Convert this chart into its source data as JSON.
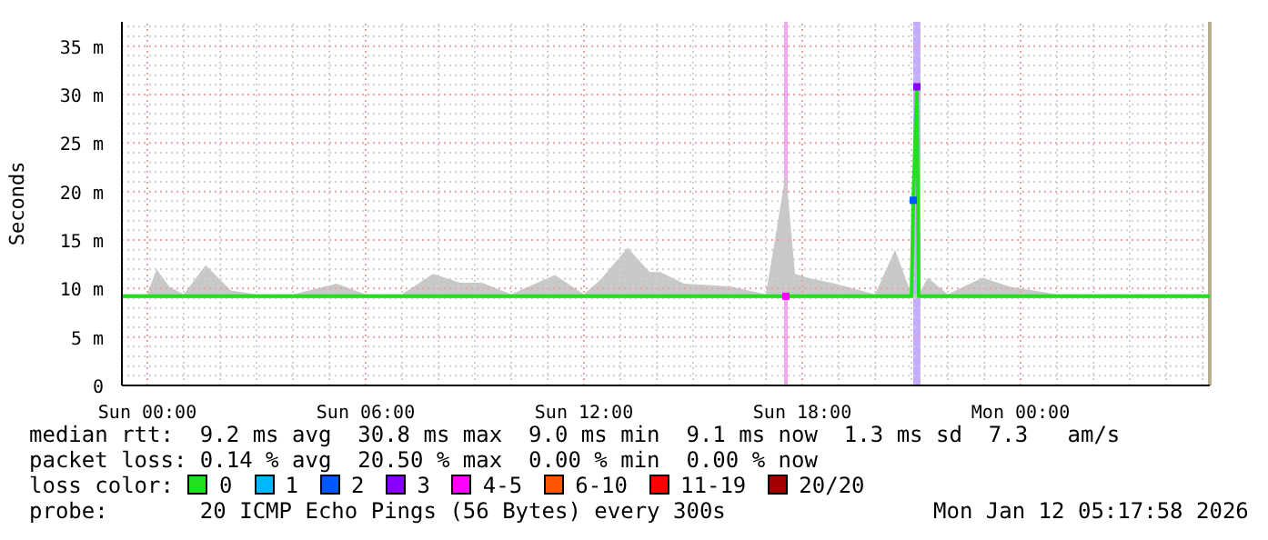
{
  "chart_data": {
    "type": "line",
    "ylabel": "Seconds",
    "legend_title": "loss color:",
    "legend": "bottom",
    "grid": true,
    "marker": "none",
    "line_style": "solid",
    "x": [
      "2026-01-10T23:18",
      "2026-01-11T00:00",
      "2026-01-11T00:15",
      "2026-01-11T00:36",
      "2026-01-11T01:00",
      "2026-01-11T01:36",
      "2026-01-11T02:18",
      "2026-01-11T03:00",
      "2026-01-11T04:00",
      "2026-01-11T05:12",
      "2026-01-11T06:00",
      "2026-01-11T07:00",
      "2026-01-11T07:51",
      "2026-01-11T08:36",
      "2026-01-11T09:12",
      "2026-01-11T10:00",
      "2026-01-11T11:12",
      "2026-01-11T12:00",
      "2026-01-11T12:27",
      "2026-01-11T13:12",
      "2026-01-11T13:48",
      "2026-01-11T14:06",
      "2026-01-11T14:45",
      "2026-01-11T16:03",
      "2026-01-11T17:00",
      "2026-01-11T17:33",
      "2026-01-11T17:48",
      "2026-01-11T18:09",
      "2026-01-11T18:54",
      "2026-01-11T20:00",
      "2026-01-11T20:33",
      "2026-01-11T21:00",
      "2026-01-11T21:03",
      "2026-01-11T21:09",
      "2026-01-11T21:12",
      "2026-01-11T21:27",
      "2026-01-11T22:00",
      "2026-01-11T22:57",
      "2026-01-11T23:42",
      "2026-01-12T01:00",
      "2026-01-12T02:00",
      "2026-01-12T03:00",
      "2026-01-12T04:00",
      "2026-01-12T05:12"
    ],
    "xlim": [
      "2026-01-10T23:18",
      "2026-01-12T05:12"
    ],
    "xticks": [
      {
        "value": "2026-01-11T00:00",
        "label": "Sun 00:00"
      },
      {
        "value": "2026-01-11T01:00",
        "label": null
      },
      {
        "value": "2026-01-11T02:00",
        "label": null
      },
      {
        "value": "2026-01-11T03:00",
        "label": null
      },
      {
        "value": "2026-01-11T04:00",
        "label": null
      },
      {
        "value": "2026-01-11T05:00",
        "label": null
      },
      {
        "value": "2026-01-11T06:00",
        "label": "Sun 06:00"
      },
      {
        "value": "2026-01-11T07:00",
        "label": null
      },
      {
        "value": "2026-01-11T08:00",
        "label": null
      },
      {
        "value": "2026-01-11T09:00",
        "label": null
      },
      {
        "value": "2026-01-11T10:00",
        "label": null
      },
      {
        "value": "2026-01-11T11:00",
        "label": null
      },
      {
        "value": "2026-01-11T12:00",
        "label": "Sun 12:00"
      },
      {
        "value": "2026-01-11T13:00",
        "label": null
      },
      {
        "value": "2026-01-11T14:00",
        "label": null
      },
      {
        "value": "2026-01-11T15:00",
        "label": null
      },
      {
        "value": "2026-01-11T16:00",
        "label": null
      },
      {
        "value": "2026-01-11T17:00",
        "label": null
      },
      {
        "value": "2026-01-11T18:00",
        "label": "Sun 18:00"
      },
      {
        "value": "2026-01-11T19:00",
        "label": null
      },
      {
        "value": "2026-01-11T20:00",
        "label": null
      },
      {
        "value": "2026-01-11T21:00",
        "label": null
      },
      {
        "value": "2026-01-11T22:00",
        "label": null
      },
      {
        "value": "2026-01-11T23:00",
        "label": null
      },
      {
        "value": "2026-01-12T00:00",
        "label": "Mon 00:00"
      },
      {
        "value": "2026-01-12T01:00",
        "label": null
      },
      {
        "value": "2026-01-12T02:00",
        "label": null
      },
      {
        "value": "2026-01-12T03:00",
        "label": null
      },
      {
        "value": "2026-01-12T04:00",
        "label": null
      },
      {
        "value": "2026-01-12T05:00",
        "label": null
      }
    ],
    "ylim": [
      0,
      37.5
    ],
    "yticks": [
      0,
      {
        "value": 1,
        "label": null
      },
      {
        "value": 2,
        "label": null
      },
      {
        "value": 3,
        "label": null
      },
      {
        "value": 4,
        "label": null
      },
      {
        "value": 5,
        "label": "5 m"
      },
      {
        "value": 6,
        "label": null
      },
      {
        "value": 7,
        "label": null
      },
      {
        "value": 8,
        "label": null
      },
      {
        "value": 9,
        "label": null
      },
      {
        "value": 10,
        "label": "10 m"
      },
      {
        "value": 11,
        "label": null
      },
      {
        "value": 12,
        "label": null
      },
      {
        "value": 13,
        "label": null
      },
      {
        "value": 14,
        "label": null
      },
      {
        "value": 15,
        "label": "15 m"
      },
      {
        "value": 16,
        "label": null
      },
      {
        "value": 17,
        "label": null
      },
      {
        "value": 18,
        "label": null
      },
      {
        "value": 19,
        "label": null
      },
      {
        "value": 20,
        "label": "20 m"
      },
      {
        "value": 21,
        "label": null
      },
      {
        "value": 22,
        "label": null
      },
      {
        "value": 23,
        "label": null
      },
      {
        "value": 24,
        "label": null
      },
      {
        "value": 25,
        "label": "25 m"
      },
      {
        "value": 26,
        "label": null
      },
      {
        "value": 27,
        "label": null
      },
      {
        "value": 28,
        "label": null
      },
      {
        "value": 29,
        "label": null
      },
      {
        "value": 30,
        "label": "30 m"
      },
      {
        "value": 31,
        "label": null
      },
      {
        "value": 32,
        "label": null
      },
      {
        "value": 33,
        "label": null
      },
      {
        "value": 34,
        "label": null
      },
      {
        "value": 35,
        "label": "35 m"
      },
      {
        "value": 36,
        "label": null
      },
      {
        "value": 37,
        "label": null
      }
    ],
    "series": [
      {
        "name": "0",
        "color": "#22e01e",
        "values": [
          9.2,
          9.2,
          9.2,
          9.2,
          9.2,
          9.2,
          9.2,
          9.2,
          9.2,
          9.2,
          9.2,
          9.2,
          9.2,
          9.2,
          9.2,
          9.2,
          9.2,
          9.2,
          9.2,
          9.2,
          9.2,
          9.2,
          9.2,
          9.2,
          9.2,
          9.2,
          9.2,
          9.2,
          9.2,
          9.2,
          9.2,
          9.2,
          19.1,
          30.8,
          9.2,
          9.2,
          9.2,
          9.2,
          9.2,
          9.2,
          9.2,
          9.2,
          9.2,
          9.2
        ],
        "lower": [
          9.0,
          9.0,
          9.0,
          9.0,
          9.0,
          9.0,
          9.0,
          9.0,
          9.0,
          9.0,
          9.0,
          9.0,
          9.0,
          9.0,
          9.0,
          9.0,
          9.0,
          9.0,
          9.0,
          9.0,
          9.0,
          9.0,
          9.0,
          9.0,
          9.0,
          9.0,
          9.0,
          9.0,
          9.0,
          9.0,
          9.0,
          9.0,
          9.0,
          9.0,
          9.0,
          9.0,
          9.0,
          9.0,
          9.0,
          9.0,
          9.0,
          9.0,
          9.0,
          9.0
        ],
        "upper": [
          9.4,
          9.4,
          12.0,
          10.2,
          9.4,
          12.4,
          9.8,
          9.4,
          9.4,
          10.5,
          9.4,
          9.4,
          11.5,
          10.6,
          10.6,
          9.4,
          11.4,
          9.4,
          10.9,
          14.2,
          11.7,
          11.7,
          10.5,
          10.2,
          9.4,
          21.9,
          11.5,
          11.1,
          10.5,
          9.4,
          14.0,
          9.4,
          9.4,
          9.4,
          9.4,
          11.1,
          9.4,
          11.1,
          10.2,
          9.4,
          9.4,
          9.4,
          9.4,
          9.4
        ]
      },
      {
        "name": "1",
        "color": "#00b8ff",
        "values": [
          null,
          null,
          null,
          null,
          null,
          null,
          null,
          null,
          null,
          null,
          null,
          null,
          null,
          null,
          null,
          null,
          null,
          null,
          null,
          null,
          null,
          null,
          null,
          null,
          null,
          null,
          null,
          null,
          null,
          null,
          null,
          null,
          null,
          null,
          null,
          null,
          null,
          null,
          null,
          null,
          null,
          null,
          null,
          null
        ]
      },
      {
        "name": "2",
        "color": "#0059ff",
        "marker": "square",
        "values": [
          null,
          null,
          null,
          null,
          null,
          null,
          null,
          null,
          null,
          null,
          null,
          null,
          null,
          null,
          null,
          null,
          null,
          null,
          null,
          null,
          null,
          null,
          null,
          null,
          null,
          null,
          null,
          null,
          null,
          null,
          null,
          null,
          19.1,
          null,
          null,
          null,
          null,
          null,
          null,
          null,
          null,
          null,
          null,
          null
        ]
      },
      {
        "name": "3",
        "color": "#8800ff",
        "marker": "square",
        "values": [
          null,
          null,
          null,
          null,
          null,
          null,
          null,
          null,
          null,
          null,
          null,
          null,
          null,
          null,
          null,
          null,
          null,
          null,
          null,
          null,
          null,
          null,
          null,
          null,
          null,
          null,
          null,
          null,
          null,
          null,
          null,
          null,
          null,
          30.8,
          null,
          null,
          null,
          null,
          null,
          null,
          null,
          null,
          null,
          null
        ]
      },
      {
        "name": "4-5",
        "color": "#ff00ff",
        "marker": "square",
        "values": [
          null,
          null,
          null,
          null,
          null,
          null,
          null,
          null,
          null,
          null,
          null,
          null,
          null,
          null,
          null,
          null,
          null,
          null,
          null,
          null,
          null,
          null,
          null,
          null,
          null,
          9.2,
          null,
          null,
          null,
          null,
          null,
          null,
          null,
          null,
          null,
          null,
          null,
          null,
          null,
          null,
          null,
          null,
          null,
          null
        ]
      },
      {
        "name": "6-10",
        "color": "#ff5500",
        "values": [
          null,
          null,
          null,
          null,
          null,
          null,
          null,
          null,
          null,
          null,
          null,
          null,
          null,
          null,
          null,
          null,
          null,
          null,
          null,
          null,
          null,
          null,
          null,
          null,
          null,
          null,
          null,
          null,
          null,
          null,
          null,
          null,
          null,
          null,
          null,
          null,
          null,
          null,
          null,
          null,
          null,
          null,
          null,
          null
        ]
      },
      {
        "name": "11-19",
        "color": "#ff0000",
        "values": [
          null,
          null,
          null,
          null,
          null,
          null,
          null,
          null,
          null,
          null,
          null,
          null,
          null,
          null,
          null,
          null,
          null,
          null,
          null,
          null,
          null,
          null,
          null,
          null,
          null,
          null,
          null,
          null,
          null,
          null,
          null,
          null,
          null,
          null,
          null,
          null,
          null,
          null,
          null,
          null,
          null,
          null,
          null,
          null
        ]
      },
      {
        "name": "20/20",
        "color": "#a10000",
        "values": [
          null,
          null,
          null,
          null,
          null,
          null,
          null,
          null,
          null,
          null,
          null,
          null,
          null,
          null,
          null,
          null,
          null,
          null,
          null,
          null,
          null,
          null,
          null,
          null,
          null,
          null,
          null,
          null,
          null,
          null,
          null,
          null,
          null,
          null,
          null,
          null,
          null,
          null,
          null,
          null,
          null,
          null,
          null,
          null
        ]
      }
    ],
    "bands": [
      {
        "axis": "x",
        "from": "2026-01-11T17:30",
        "to": "2026-01-11T17:36",
        "color": "#f0a8f0"
      },
      {
        "axis": "x",
        "from": "2026-01-11T21:03",
        "to": "2026-01-11T21:15",
        "color": "#c4acff"
      }
    ],
    "ref_lines": [
      {
        "axis": "x",
        "value": "2026-01-12T05:12",
        "color": "#b8b08c"
      }
    ],
    "annotations": [
      "median rtt:  9.2 ms avg  30.8 ms max  9.0 ms min  9.1 ms now  1.3 ms sd  7.3   am/s",
      "packet loss: 0.14 % avg  20.50 % max  0.00 % min  0.00 % now",
      "probe:       20 ICMP Echo Pings (56 Bytes) every 300s",
      "Mon Jan 12 05:17:58 2026"
    ]
  }
}
